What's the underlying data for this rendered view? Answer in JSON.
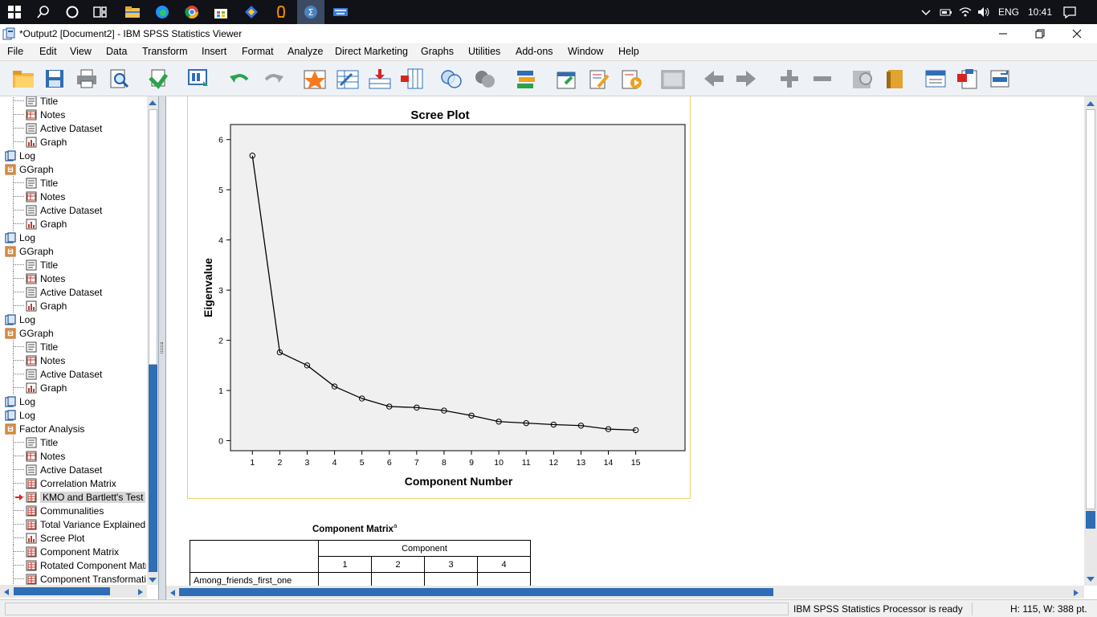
{
  "taskbar": {
    "language": "ENG",
    "time": "10:41",
    "icons": [
      "windows-icon",
      "search-icon",
      "cortana-icon",
      "task-view-icon",
      "file-explorer-icon",
      "edge-icon",
      "chrome-icon",
      "store-icon",
      "app-icon",
      "vlc-icon",
      "spss-icon",
      "keyboard-icon"
    ]
  },
  "window": {
    "title": "*Output2 [Document2] - IBM SPSS Statistics Viewer"
  },
  "menu": [
    "File",
    "Edit",
    "View",
    "Data",
    "Transform",
    "Insert",
    "Format",
    "Analyze",
    "Direct Marketing",
    "Graphs",
    "Utilities",
    "Add-ons",
    "Window",
    "Help"
  ],
  "outline": {
    "items": [
      {
        "label": "Title",
        "level": 2,
        "icon": "title-icon"
      },
      {
        "label": "Notes",
        "level": 2,
        "icon": "notes-icon"
      },
      {
        "label": "Active Dataset",
        "level": 2,
        "icon": "dataset-icon"
      },
      {
        "label": "Graph",
        "level": 2,
        "icon": "graph-icon"
      },
      {
        "label": "Log",
        "level": 0,
        "icon": "log-icon"
      },
      {
        "label": "GGraph",
        "level": 0,
        "icon": "ggraph-icon"
      },
      {
        "label": "Title",
        "level": 2,
        "icon": "title-icon"
      },
      {
        "label": "Notes",
        "level": 2,
        "icon": "notes-icon"
      },
      {
        "label": "Active Dataset",
        "level": 2,
        "icon": "dataset-icon"
      },
      {
        "label": "Graph",
        "level": 2,
        "icon": "graph-icon"
      },
      {
        "label": "Log",
        "level": 0,
        "icon": "log-icon"
      },
      {
        "label": "GGraph",
        "level": 0,
        "icon": "ggraph-icon"
      },
      {
        "label": "Title",
        "level": 2,
        "icon": "title-icon"
      },
      {
        "label": "Notes",
        "level": 2,
        "icon": "notes-icon"
      },
      {
        "label": "Active Dataset",
        "level": 2,
        "icon": "dataset-icon"
      },
      {
        "label": "Graph",
        "level": 2,
        "icon": "graph-icon"
      },
      {
        "label": "Log",
        "level": 0,
        "icon": "log-icon"
      },
      {
        "label": "GGraph",
        "level": 0,
        "icon": "ggraph-icon"
      },
      {
        "label": "Title",
        "level": 2,
        "icon": "title-icon"
      },
      {
        "label": "Notes",
        "level": 2,
        "icon": "notes-icon"
      },
      {
        "label": "Active Dataset",
        "level": 2,
        "icon": "dataset-icon"
      },
      {
        "label": "Graph",
        "level": 2,
        "icon": "graph-icon"
      },
      {
        "label": "Log",
        "level": 0,
        "icon": "log-icon"
      },
      {
        "label": "Log",
        "level": 0,
        "icon": "log-icon"
      },
      {
        "label": "Factor Analysis",
        "level": 0,
        "icon": "ggraph-icon"
      },
      {
        "label": "Title",
        "level": 2,
        "icon": "title-icon"
      },
      {
        "label": "Notes",
        "level": 2,
        "icon": "notes-icon"
      },
      {
        "label": "Active Dataset",
        "level": 2,
        "icon": "dataset-icon"
      },
      {
        "label": "Correlation Matrix",
        "level": 2,
        "icon": "table-icon"
      },
      {
        "label": "KMO and Bartlett's Test",
        "level": 2,
        "icon": "table-icon",
        "selected": true
      },
      {
        "label": "Communalities",
        "level": 2,
        "icon": "table-icon"
      },
      {
        "label": "Total Variance Explained",
        "level": 2,
        "icon": "table-icon"
      },
      {
        "label": "Scree Plot",
        "level": 2,
        "icon": "graph-icon"
      },
      {
        "label": "Component Matrix",
        "level": 2,
        "icon": "table-icon"
      },
      {
        "label": "Rotated Component Matrix",
        "level": 2,
        "icon": "table-icon"
      },
      {
        "label": "Component Transformation Matrix",
        "level": 2,
        "icon": "table-icon"
      }
    ]
  },
  "chart_data": {
    "type": "line",
    "title": "Scree Plot",
    "xlabel": "Component Number",
    "ylabel": "Eigenvalue",
    "x": [
      1,
      2,
      3,
      4,
      5,
      6,
      7,
      8,
      9,
      10,
      11,
      12,
      13,
      14,
      15
    ],
    "values": [
      5.68,
      1.76,
      1.5,
      1.08,
      0.84,
      0.68,
      0.66,
      0.6,
      0.5,
      0.38,
      0.35,
      0.32,
      0.3,
      0.23,
      0.21
    ],
    "ylim": [
      -0.2,
      6.3
    ],
    "yticks": [
      0,
      1,
      2,
      3,
      4,
      5,
      6
    ],
    "grid": false
  },
  "component_matrix": {
    "title": "Component Matrix",
    "superscript": "a",
    "header": "Component",
    "columns": [
      "1",
      "2",
      "3",
      "4"
    ],
    "first_row": "Among_friends_first_one"
  },
  "status": {
    "processor": "IBM SPSS Statistics Processor is ready",
    "dims": "H: 115, W: 388 pt."
  }
}
